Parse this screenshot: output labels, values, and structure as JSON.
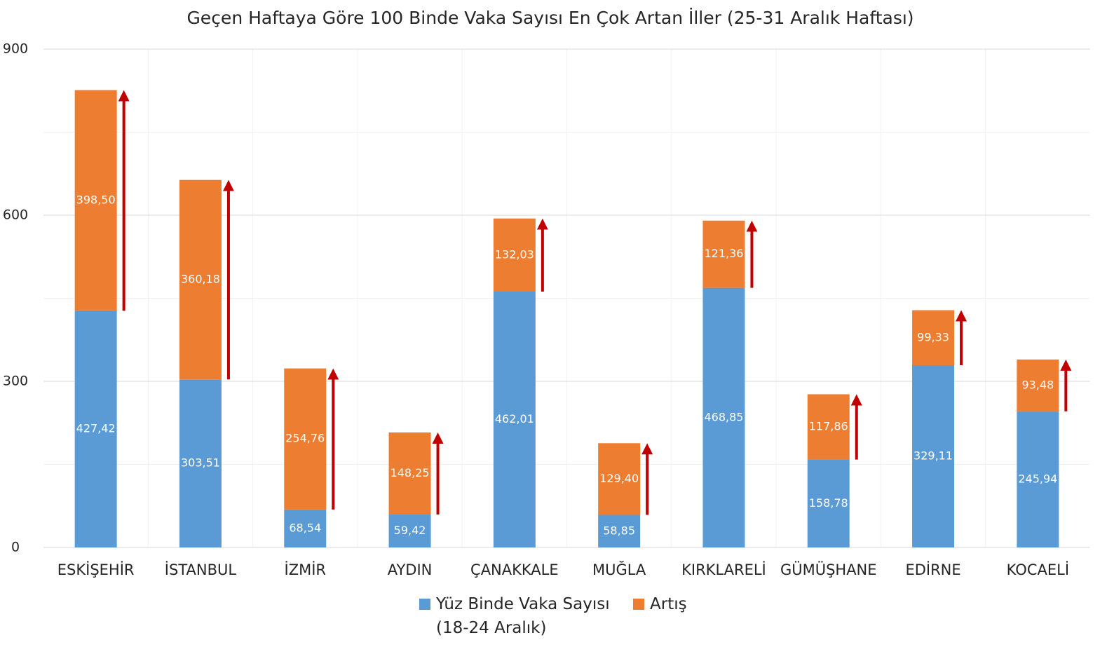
{
  "chart_data": {
    "type": "stacked_bar",
    "title": "Geçen Haftaya Göre 100 Binde Vaka Sayısı En Çok Artan İller (25-31 Aralık Haftası)",
    "categories": [
      "ESKİŞEHİR",
      "İSTANBUL",
      "İZMİR",
      "AYDIN",
      "ÇANAKKALE",
      "MUĞLA",
      "KIRKLARELİ",
      "GÜMÜŞHANE",
      "EDİRNE",
      "KOCAELİ"
    ],
    "series": [
      {
        "name": "Yüz Binde Vaka Sayısı (18-24 Aralık)",
        "color": "#5b9bd5",
        "values": [
          427.42,
          303.51,
          68.54,
          59.42,
          462.01,
          58.85,
          468.85,
          158.78,
          329.11,
          245.94
        ],
        "value_labels": [
          "427,42",
          "303,51",
          "68,54",
          "59,42",
          "462,01",
          "58,85",
          "468,85",
          "158,78",
          "329,11",
          "245,94"
        ]
      },
      {
        "name": "Artış",
        "color": "#ed7d31",
        "values": [
          398.5,
          360.18,
          254.76,
          148.25,
          132.03,
          129.4,
          121.36,
          117.86,
          99.33,
          93.48
        ],
        "value_labels": [
          "398,50",
          "360,18",
          "254,76",
          "148,25",
          "132,03",
          "129,40",
          "121,36",
          "117,86",
          "99,33",
          "93,48"
        ]
      }
    ],
    "arrow_color": "#c00000",
    "ylim": [
      0,
      900
    ],
    "yticks": [
      0,
      300,
      600,
      900
    ],
    "minor_yticks": [
      150,
      450,
      750
    ],
    "grid": true
  }
}
